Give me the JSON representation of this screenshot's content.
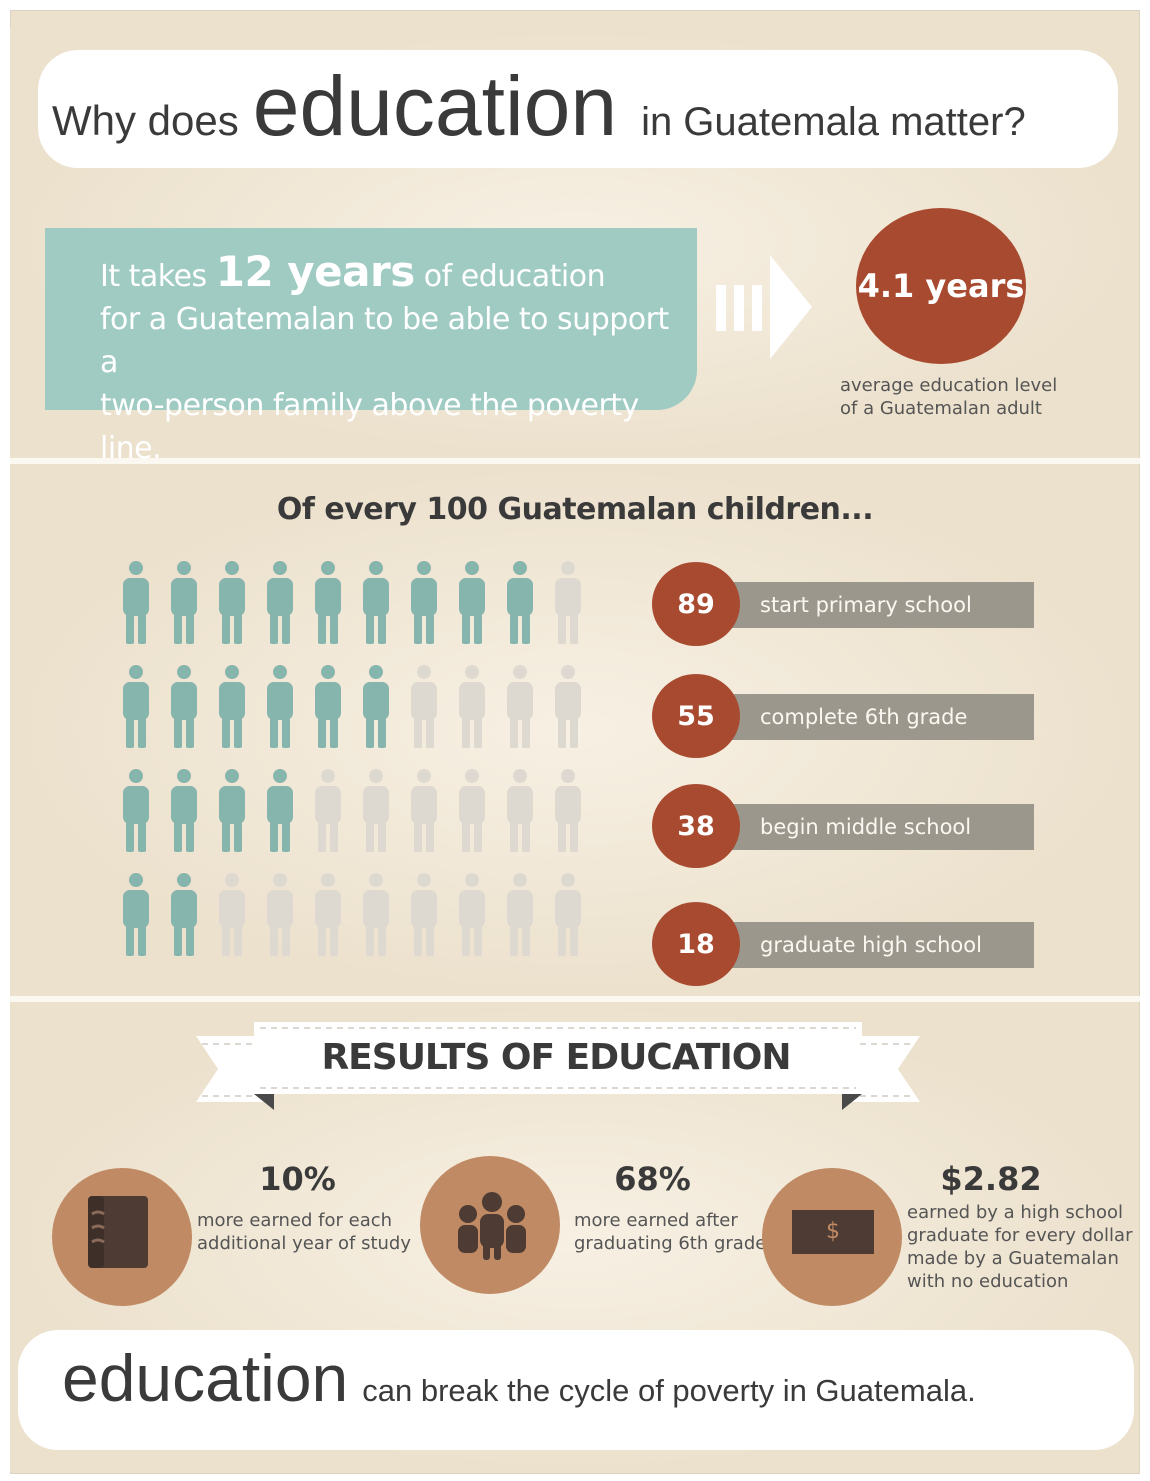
{
  "title": {
    "prefix": "Why does",
    "highlight": "education",
    "suffix": "in Guatemala matter?"
  },
  "poverty": {
    "text_before": "It takes",
    "years": "12 years",
    "text_after": "of education",
    "line2": "for a Guatemalan to be able to support a",
    "line3": "two-person family above the poverty line.",
    "average_value": "4.1 years",
    "average_line1": "average education level",
    "average_line2": "of a Guatemalan adult"
  },
  "children": {
    "title": "Of every 100 Guatemalan children...",
    "colors": {
      "filled": "#86b5ae",
      "empty": "#ddd9d0"
    }
  },
  "results": {
    "title": "RESULTS OF EDUCATION",
    "items": [
      {
        "icon": "book-icon",
        "stat": "10%",
        "line1": "more earned for each",
        "line2": "additional year of study"
      },
      {
        "icon": "family-icon",
        "stat": "68%",
        "line1": "more earned after",
        "line2": "graduating 6th grade"
      },
      {
        "icon": "money-icon",
        "stat": "$2.82",
        "line1": "earned by a high school",
        "line2": "graduate for every dollar",
        "line3": "made by a Guatemalan",
        "line4": "with no education",
        "symbol": "$"
      }
    ]
  },
  "footer": {
    "highlight": "education",
    "text": "can break the cycle of poverty in Guatemala."
  },
  "colors": {
    "accent_red": "#a84a2f",
    "teal": "#9fcbc3",
    "bar_gray": "#9b978d",
    "circle_tan": "#c08a64"
  },
  "chart_data": {
    "type": "bar",
    "title": "Of every 100 Guatemalan children...",
    "categories": [
      "start primary school",
      "complete 6th grade",
      "begin middle school",
      "graduate high school"
    ],
    "values": [
      89,
      55,
      38,
      18
    ],
    "icons_per_row": 10,
    "ylim": [
      0,
      100
    ]
  }
}
